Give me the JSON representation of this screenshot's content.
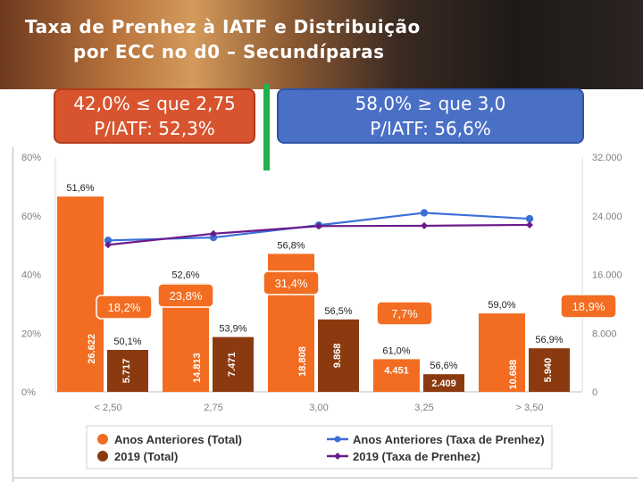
{
  "slide": {
    "title_line1": "Taxa de Prenhez à IATF e Distribuição",
    "title_line2": "por ECC no d0 – Secundíparas"
  },
  "callouts": {
    "left": {
      "line1": "42,0% ≤ que 2,75",
      "line2": "P/IATF: 52,3%",
      "color": "#d8542e"
    },
    "right": {
      "line1": "58,0% ≥ que 3,0",
      "line2": "P/IATF: 56,6%",
      "color": "#4a70c6"
    }
  },
  "chart_data": {
    "type": "bar",
    "categories": [
      "< 2,50",
      "2,75",
      "3,00",
      "3,25",
      "> 3,50"
    ],
    "left_axis": {
      "ticks": [
        "0%",
        "20%",
        "40%",
        "60%",
        "80%"
      ],
      "ylim": [
        0,
        80
      ]
    },
    "right_axis": {
      "ticks": [
        "0",
        "8.000",
        "16.000",
        "24.000",
        "32.000"
      ],
      "ylim": [
        0,
        32000
      ]
    },
    "series": [
      {
        "name": "Anos Anteriores (Total)",
        "type": "bar",
        "axis": "right",
        "color": "#f26d21",
        "values": [
          26622,
          14813,
          18808,
          4451,
          10688
        ],
        "labels": [
          "26.622",
          "14.813",
          "18.808",
          "4.451",
          "10.688"
        ],
        "dist_labels": [
          "18,2%",
          "23,8%",
          "31,4%",
          "7,7%",
          "18,9%"
        ],
        "rate_labels": [
          "51,6%",
          "52,6%",
          "56,8%",
          "61,0%",
          "59,0%"
        ]
      },
      {
        "name": "2019 (Total)",
        "type": "bar",
        "axis": "right",
        "color": "#8b3a10",
        "values": [
          5717,
          7471,
          9868,
          2409,
          5940
        ],
        "labels": [
          "5.717",
          "7.471",
          "9.868",
          "2.409",
          "5.940"
        ],
        "rate_labels": [
          "50,1%",
          "53,9%",
          "56,5%",
          "56,6%",
          "56,9%"
        ]
      },
      {
        "name": "Anos Anteriores (Taxa de Prenhez)",
        "type": "line",
        "axis": "left",
        "color": "#3b6fd8",
        "values": [
          51.6,
          52.6,
          56.8,
          61.0,
          59.0
        ]
      },
      {
        "name": "2019 (Taxa de Prenhez)",
        "type": "line",
        "axis": "left",
        "color": "#6a1b8a",
        "values": [
          50.1,
          53.9,
          56.5,
          56.6,
          56.9
        ]
      }
    ]
  }
}
